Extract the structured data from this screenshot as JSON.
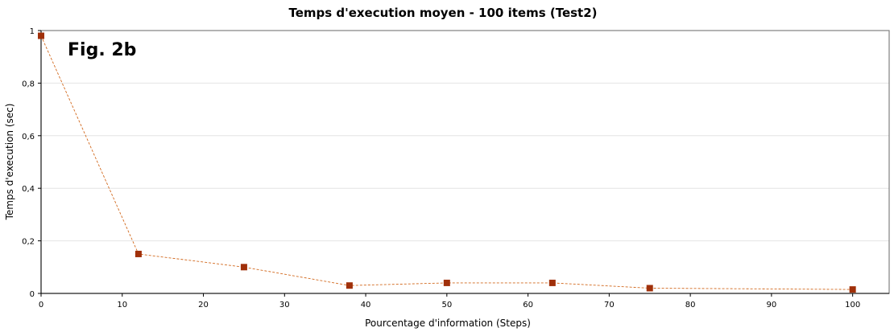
{
  "figure_label": "Fig. 2b",
  "chart_data": {
    "type": "line",
    "title": "Temps d'execution moyen - 100 items (Test2)",
    "xlabel": "Pourcentage d'information (Steps)",
    "ylabel": "Temps d'execution (sec)",
    "xlim": [
      0,
      104.5
    ],
    "ylim": [
      0,
      1
    ],
    "x_ticks": [
      0,
      10,
      20,
      30,
      40,
      50,
      60,
      70,
      80,
      90,
      100
    ],
    "y_ticks": [
      0,
      0.2,
      0.4,
      0.6,
      0.8,
      1
    ],
    "y_tick_labels": [
      "0",
      "0,2",
      "0,4",
      "0,6",
      "0,8",
      "1"
    ],
    "grid": "horizontal",
    "legend": "none",
    "series": [
      {
        "x": [
          0,
          12,
          25,
          38,
          50,
          63,
          75,
          100
        ],
        "y": [
          0.98,
          0.15,
          0.1,
          0.03,
          0.04,
          0.04,
          0.02,
          0.015
        ],
        "color": "#a0300a",
        "line_color": "#d2691e",
        "line_style": "dashed",
        "marker": "square"
      }
    ]
  }
}
